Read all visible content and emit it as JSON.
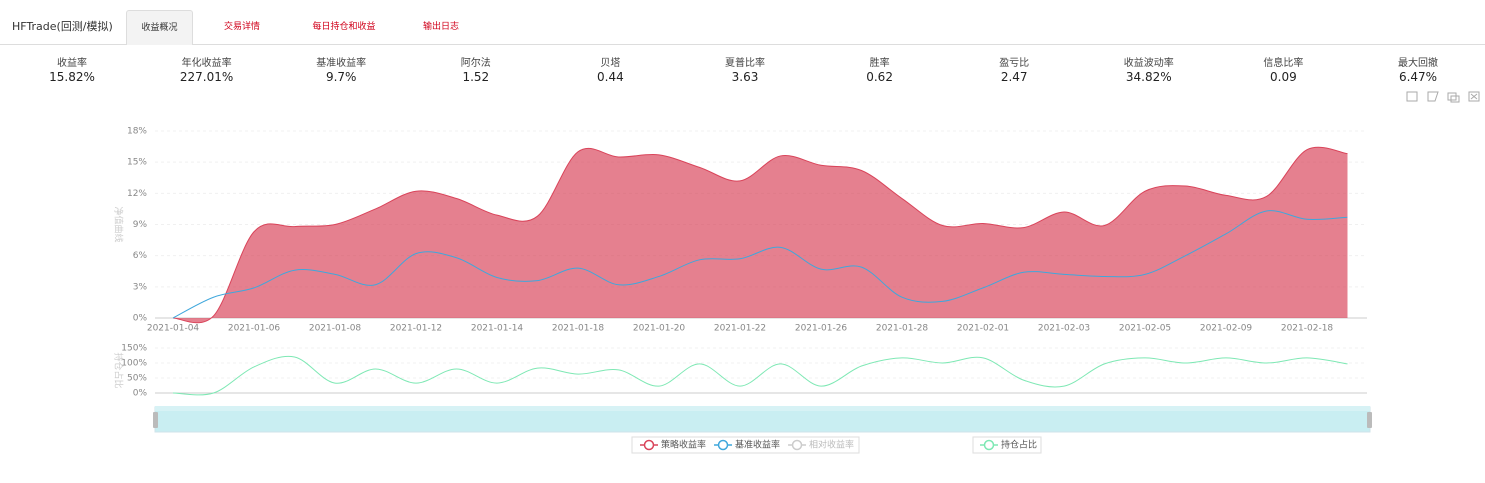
{
  "header": {
    "title": "HFTrade(回测/模拟)",
    "tabs": [
      "收益概况",
      "交易详情",
      "每日持仓和收益",
      "输出日志"
    ],
    "active_tab": 0
  },
  "metrics": [
    {
      "label": "收益率",
      "value": "15.82%"
    },
    {
      "label": "年化收益率",
      "value": "227.01%"
    },
    {
      "label": "基准收益率",
      "value": "9.7%"
    },
    {
      "label": "阿尔法",
      "value": "1.52"
    },
    {
      "label": "贝塔",
      "value": "0.44"
    },
    {
      "label": "夏普比率",
      "value": "3.63"
    },
    {
      "label": "胜率",
      "value": "0.62"
    },
    {
      "label": "盈亏比",
      "value": "2.47"
    },
    {
      "label": "收益波动率",
      "value": "34.82%"
    },
    {
      "label": "信息比率",
      "value": "0.09"
    },
    {
      "label": "最大回撤",
      "value": "6.47%"
    }
  ],
  "chart_data": [
    {
      "type": "area",
      "ylabel": "净值曲线",
      "categories": [
        "2021-01-04",
        null,
        "2021-01-06",
        null,
        "2021-01-08",
        null,
        "2021-01-12",
        null,
        "2021-01-14",
        null,
        "2021-01-18",
        null,
        "2021-01-20",
        null,
        "2021-01-22",
        null,
        "2021-01-26",
        null,
        "2021-01-28",
        null,
        "2021-02-01",
        null,
        "2021-02-03",
        null,
        "2021-02-05",
        null,
        "2021-02-09",
        null,
        "2021-02-18",
        null
      ],
      "series": [
        {
          "name": "策略收益率",
          "color": "#d9445a",
          "fill": true,
          "values": [
            0,
            0.2,
            8.3,
            8.8,
            9.0,
            10.5,
            12.2,
            11.5,
            9.9,
            9.8,
            16.0,
            15.5,
            15.7,
            14.5,
            13.2,
            15.6,
            14.7,
            14.2,
            11.5,
            8.9,
            9.1,
            8.7,
            10.2,
            8.9,
            12.2,
            12.7,
            11.8,
            11.7,
            16.2,
            15.82
          ]
        },
        {
          "name": "基准收益率",
          "color": "#3fa7dc",
          "fill": false,
          "values": [
            0,
            2.0,
            2.9,
            4.6,
            4.2,
            3.2,
            6.2,
            5.8,
            3.9,
            3.6,
            4.8,
            3.2,
            4.0,
            5.6,
            5.7,
            6.8,
            4.7,
            4.9,
            2.0,
            1.6,
            2.9,
            4.4,
            4.2,
            4.0,
            4.2,
            6.0,
            8.1,
            10.3,
            9.5,
            9.7
          ]
        },
        {
          "name": "相对收益率",
          "color": "#c8c8c8",
          "visible": false
        }
      ],
      "ylim": [
        0,
        18
      ],
      "yticks": [
        {
          "value": 0,
          "label": "0%"
        },
        {
          "value": 3,
          "label": "3%"
        },
        {
          "value": 6,
          "label": "6%"
        },
        {
          "value": 9,
          "label": "9%"
        },
        {
          "value": 12,
          "label": "12%"
        },
        {
          "value": 15,
          "label": "15%"
        },
        {
          "value": 18,
          "label": "18%"
        }
      ],
      "grid": true
    },
    {
      "type": "line",
      "ylabel": "持仓占比",
      "series": [
        {
          "name": "持仓占比",
          "color": "#7ee8b4",
          "values": [
            0,
            0,
            87,
            120,
            33,
            80,
            33,
            80,
            33,
            83,
            63,
            77,
            23,
            97,
            23,
            97,
            23,
            90,
            117,
            100,
            117,
            43,
            23,
            97,
            117,
            100,
            117,
            100,
            117,
            97
          ]
        }
      ],
      "ylim": [
        0,
        150
      ],
      "yticks": [
        {
          "value": 0,
          "label": "0%"
        },
        {
          "value": 50,
          "label": "50%"
        },
        {
          "value": 100,
          "label": "100%"
        },
        {
          "value": 150,
          "label": "150%"
        }
      ],
      "grid": true
    }
  ]
}
